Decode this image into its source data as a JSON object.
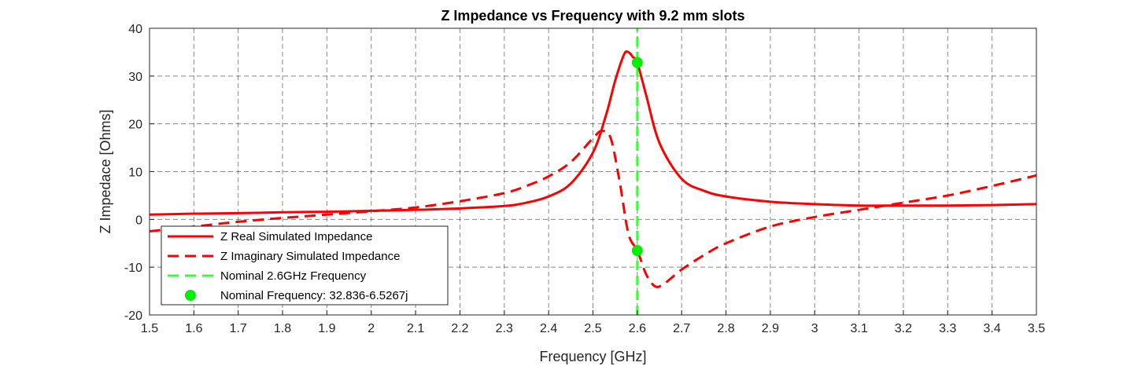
{
  "chart_data": {
    "type": "line",
    "title": "Z Impedance vs Frequency with 9.2 mm slots",
    "xlabel": "Frequency [GHz]",
    "ylabel": "Z Impedace [Ohms]",
    "xlim": [
      1.5,
      3.5
    ],
    "ylim": [
      -20,
      40
    ],
    "xticks": [
      "1.5",
      "1.6",
      "1.7",
      "1.8",
      "1.9",
      "2",
      "2.1",
      "2.2",
      "2.3",
      "2.4",
      "2.5",
      "2.6",
      "2.7",
      "2.8",
      "2.9",
      "3",
      "3.1",
      "3.2",
      "3.3",
      "3.4",
      "3.5"
    ],
    "yticks": [
      "-20",
      "-10",
      "0",
      "10",
      "20",
      "30",
      "40"
    ],
    "grid": true,
    "legend_position": "bottom-left",
    "series": [
      {
        "name": "Z Real Simulated Impedance",
        "color": "#ff0000",
        "style": "solid",
        "x": [
          1.5,
          1.6,
          1.7,
          1.8,
          1.9,
          2.0,
          2.1,
          2.2,
          2.3,
          2.35,
          2.4,
          2.45,
          2.5,
          2.53,
          2.55,
          2.57,
          2.58,
          2.59,
          2.6,
          2.62,
          2.65,
          2.7,
          2.75,
          2.8,
          2.9,
          3.0,
          3.1,
          3.2,
          3.3,
          3.4,
          3.5
        ],
        "y": [
          1.0,
          1.2,
          1.3,
          1.5,
          1.6,
          1.8,
          2.0,
          2.3,
          2.8,
          3.5,
          4.8,
          7.5,
          14.0,
          22.0,
          29.0,
          34.5,
          35.0,
          34.0,
          32.8,
          26.0,
          16.0,
          8.5,
          6.0,
          4.8,
          3.7,
          3.2,
          2.9,
          2.9,
          2.9,
          3.0,
          3.2
        ]
      },
      {
        "name": "Z Imaginary Simulated Impedance",
        "color": "#ff0000",
        "style": "dashed",
        "x": [
          1.5,
          1.6,
          1.7,
          1.8,
          1.9,
          2.0,
          2.1,
          2.2,
          2.3,
          2.35,
          2.4,
          2.45,
          2.5,
          2.52,
          2.54,
          2.56,
          2.58,
          2.6,
          2.62,
          2.64,
          2.66,
          2.7,
          2.75,
          2.8,
          2.9,
          3.0,
          3.1,
          3.2,
          3.3,
          3.4,
          3.5
        ],
        "y": [
          -2.5,
          -1.5,
          -0.5,
          0.3,
          1.0,
          1.7,
          2.5,
          3.8,
          5.5,
          7.0,
          9.0,
          12.0,
          17.0,
          18.5,
          17.0,
          8.0,
          -3.0,
          -6.5,
          -11.5,
          -14.0,
          -13.5,
          -10.5,
          -7.5,
          -5.0,
          -1.5,
          0.5,
          2.0,
          3.5,
          5.0,
          7.0,
          9.2
        ]
      },
      {
        "name": "Nominal 2.6GHz Frequency",
        "color": "#33ff33",
        "style": "dashed",
        "x": [
          2.6,
          2.6
        ],
        "y": [
          -20,
          40
        ]
      },
      {
        "name": "Nominal Frequency: 32.836-6.5267j",
        "color": "#00ee00",
        "style": "marker",
        "x": [
          2.6,
          2.6
        ],
        "y": [
          32.836,
          -6.5267
        ]
      }
    ]
  }
}
